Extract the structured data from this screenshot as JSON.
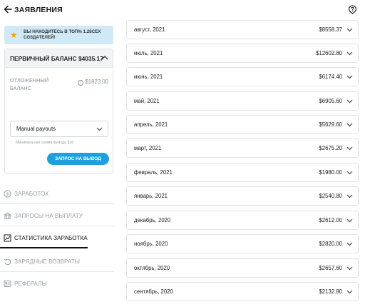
{
  "header": {
    "title": "ЗАЯВЛЕНИЯ"
  },
  "banner": {
    "text": "ВЫ НАХОДИТЕСЬ В ТОП% 1.28СЕХ СОЗДАТЕЛЕЙ!"
  },
  "balance": {
    "primary_label": "ПЕРВИЧНЫЙ БАЛАНС",
    "primary_value": "$4035.17",
    "pending_label": "ОТЛОЖЕННЫЙ БАЛАНС",
    "pending_value": "$1823.00",
    "payout_method": "Manual payouts",
    "min_note": "Минимальная сумма вывода $20",
    "request_button": "ЗАПРОС НА ВЫВОД"
  },
  "nav": [
    {
      "label": "ЗАРАБОТОК",
      "icon": "dollar-circle-icon"
    },
    {
      "label": "ЗАПРОСЫ НА ВЫПЛАТУ",
      "icon": "bank-icon"
    },
    {
      "label": "СТАТИСТИКА ЗАРАБОТКА",
      "icon": "chart-icon",
      "active": true
    },
    {
      "label": "ЗАРЯДНЫЕ ВОЗВРАТЫ",
      "icon": "refund-icon"
    },
    {
      "label": "РЕФЕРАЛЫ",
      "icon": "referral-icon"
    }
  ],
  "months": [
    {
      "month": "август, 2021",
      "amount": "$8558.37"
    },
    {
      "month": "июль, 2021",
      "amount": "$12602.80"
    },
    {
      "month": "июнь, 2021",
      "amount": "$6174.40"
    },
    {
      "month": "май, 2021",
      "amount": "$6905.60"
    },
    {
      "month": "апрель, 2021",
      "amount": "$5629.60"
    },
    {
      "month": "март, 2021",
      "amount": "$2675.20"
    },
    {
      "month": "февраль, 2021",
      "amount": "$1980.00"
    },
    {
      "month": "январь, 2021",
      "amount": "$2540.80"
    },
    {
      "month": "декабрь, 2020",
      "amount": "$2612.00"
    },
    {
      "month": "ноябрь, 2020",
      "amount": "$2820.00"
    },
    {
      "month": "октябрь, 2020",
      "amount": "$2657.60"
    },
    {
      "month": "сентябрь, 2020",
      "amount": "$2132.80"
    }
  ],
  "colors": {
    "accent": "#1d9fe0",
    "banner": "#cfe9f6",
    "star": "#f2a900"
  }
}
